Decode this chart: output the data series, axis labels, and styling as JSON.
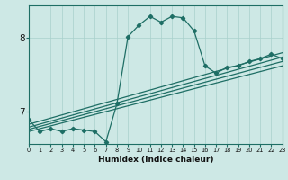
{
  "xlabel": "Humidex (Indice chaleur)",
  "xlim": [
    0,
    23
  ],
  "ylim": [
    6.55,
    8.45
  ],
  "yticks": [
    7,
    8
  ],
  "xticks": [
    0,
    1,
    2,
    3,
    4,
    5,
    6,
    7,
    8,
    9,
    10,
    11,
    12,
    13,
    14,
    15,
    16,
    17,
    18,
    19,
    20,
    21,
    22,
    23
  ],
  "bg_color": "#cde8e5",
  "line_color": "#1e6e65",
  "main_line_x": [
    0,
    1,
    2,
    3,
    4,
    5,
    6,
    7,
    8,
    9,
    10,
    11,
    12,
    13,
    14,
    15,
    16,
    17,
    18,
    19,
    20,
    21,
    22,
    23
  ],
  "main_line_y": [
    6.88,
    6.72,
    6.76,
    6.72,
    6.76,
    6.74,
    6.72,
    6.58,
    7.1,
    8.02,
    8.18,
    8.3,
    8.22,
    8.3,
    8.28,
    8.1,
    7.62,
    7.52,
    7.6,
    7.62,
    7.68,
    7.72,
    7.78,
    7.72
  ],
  "trend_lines": [
    {
      "x": [
        0,
        23
      ],
      "y": [
        6.72,
        7.62
      ]
    },
    {
      "x": [
        0,
        23
      ],
      "y": [
        6.75,
        7.68
      ]
    },
    {
      "x": [
        0,
        23
      ],
      "y": [
        6.78,
        7.74
      ]
    },
    {
      "x": [
        0,
        23
      ],
      "y": [
        6.82,
        7.8
      ]
    }
  ]
}
